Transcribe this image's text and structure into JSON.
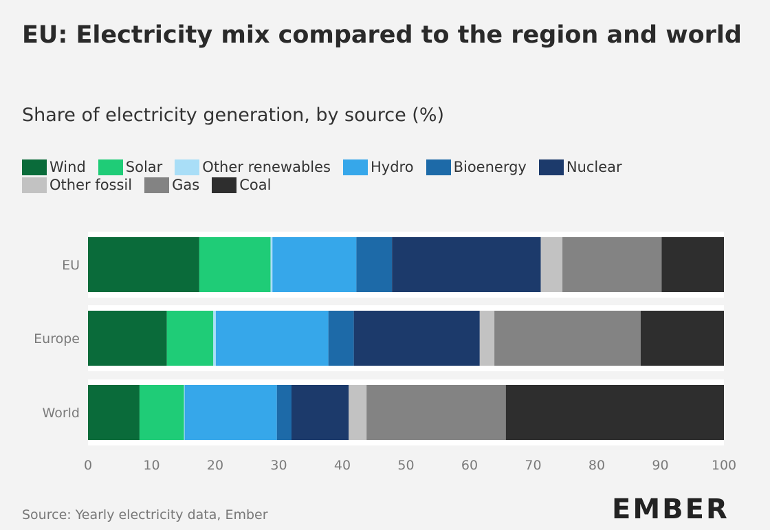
{
  "chart_data": {
    "type": "bar",
    "orientation": "horizontal",
    "stacked": true,
    "title": "EU: Electricity mix compared to the region and world",
    "subtitle": "Share of electricity generation, by source (%)",
    "categories": [
      "EU",
      "Europe",
      "World"
    ],
    "xlim": [
      0,
      100
    ],
    "x_ticks": [
      "0",
      "10",
      "20",
      "30",
      "40",
      "50",
      "60",
      "70",
      "80",
      "90",
      "100"
    ],
    "grid": false,
    "legend_position": "top",
    "series": [
      {
        "name": "Wind",
        "color": "#0a6b3a",
        "values": [
          17.5,
          12.4,
          8.1
        ]
      },
      {
        "name": "Solar",
        "color": "#1fcc77",
        "values": [
          11.2,
          7.3,
          7.0
        ]
      },
      {
        "name": "Other renewables",
        "color": "#a9def7",
        "values": [
          0.3,
          0.4,
          0.1
        ]
      },
      {
        "name": "Hydro",
        "color": "#36a7ea",
        "values": [
          13.2,
          17.7,
          14.5
        ]
      },
      {
        "name": "Bioenergy",
        "color": "#1d6aa8",
        "values": [
          5.6,
          4.0,
          2.3
        ]
      },
      {
        "name": "Nuclear",
        "color": "#1c3a6b",
        "values": [
          23.4,
          19.8,
          9.0
        ]
      },
      {
        "name": "Other fossil",
        "color": "#c2c2c2",
        "values": [
          3.4,
          2.3,
          2.8
        ]
      },
      {
        "name": "Gas",
        "color": "#838383",
        "values": [
          15.6,
          23.0,
          21.9
        ]
      },
      {
        "name": "Coal",
        "color": "#2e2e2e",
        "values": [
          9.8,
          13.1,
          34.3
        ]
      }
    ]
  },
  "source": "Source: Yearly electricity data, Ember",
  "logo_text": "EMBER",
  "colors": {
    "background": "#f3f3f3",
    "band": "#ffffff"
  }
}
